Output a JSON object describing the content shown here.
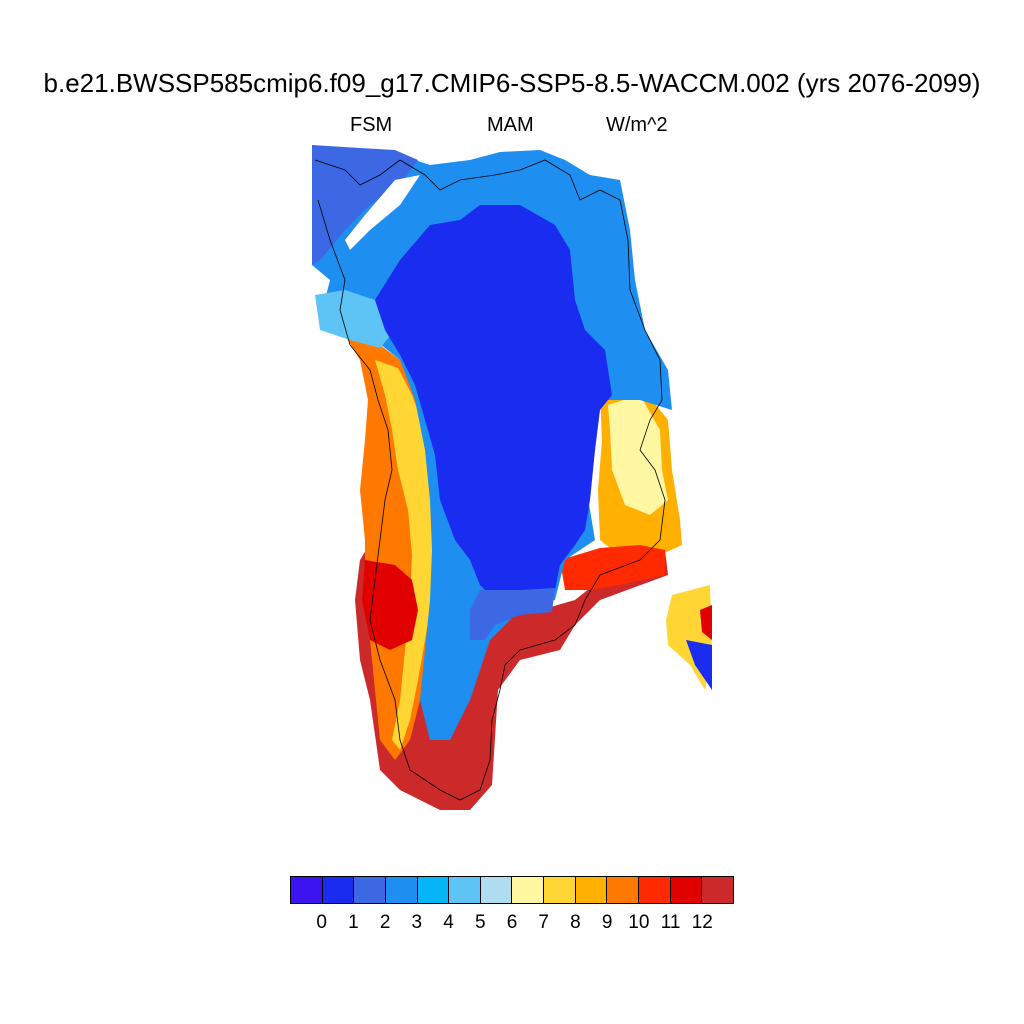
{
  "title": "b.e21.BWSSP585cmip6.f09_g17.CMIP6-SSP5-8.5-WACCM.002 (yrs 2076-2099)",
  "subtitle": {
    "left": "FSM",
    "center": "MAM",
    "right": "W/m^2"
  },
  "colorbar": {
    "colors": [
      "#3b14f0",
      "#1a2cf0",
      "#3d68e3",
      "#1e8ef0",
      "#06b4f8",
      "#5ec4f6",
      "#b0dcf2",
      "#fff7a2",
      "#ffd633",
      "#ffb000",
      "#ff7800",
      "#ff2a00",
      "#e00000",
      "#cc2a2a"
    ],
    "labels": [
      "0",
      "1",
      "2",
      "3",
      "4",
      "5",
      "6",
      "7",
      "8",
      "9",
      "10",
      "11",
      "12"
    ]
  },
  "map_regions": [
    {
      "name": "ice-sheet-interior",
      "level": "0-1"
    },
    {
      "name": "northern-margin",
      "level": "2-4"
    },
    {
      "name": "western-margin",
      "level": "8-12"
    },
    {
      "name": "southwestern-tip",
      "level": "10-12"
    },
    {
      "name": "eastern-margin",
      "level": "5-10"
    },
    {
      "name": "southeastern-coast",
      "level": "11-12"
    },
    {
      "name": "iceland-fragment",
      "level": "1-12"
    }
  ]
}
